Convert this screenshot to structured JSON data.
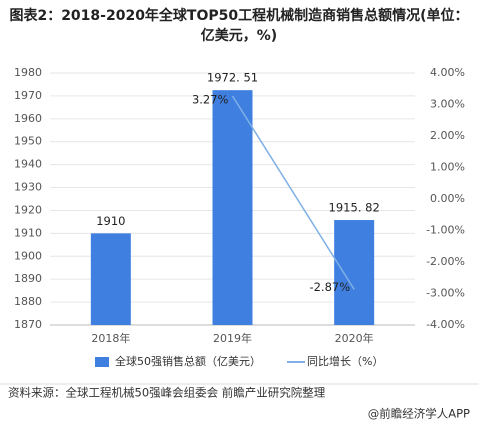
{
  "chart_data": {
    "type": "bar-line",
    "title": "图表2：2018-2020年全球TOP50工程机械制造商销售总额情况(单位：亿美元，%)",
    "categories": [
      "2018年",
      "2019年",
      "2020年"
    ],
    "series": [
      {
        "name": "全球50强销售总额（亿美元）",
        "type": "bar",
        "color": "#3f7fe0",
        "values": [
          1910,
          1972.51,
          1915.82
        ],
        "value_labels": [
          "1910",
          "1972. 51",
          "1915. 82"
        ]
      },
      {
        "name": "同比增长（%）",
        "type": "line",
        "axis": "y2",
        "color": "#7fb0e6",
        "values": [
          null,
          3.27,
          -2.87
        ],
        "value_labels": [
          null,
          "3.27%",
          "-2.87%"
        ]
      }
    ],
    "ylim": [
      1870,
      1980
    ],
    "yticks": [
      1870,
      1880,
      1890,
      1900,
      1910,
      1920,
      1930,
      1940,
      1950,
      1960,
      1970,
      1980
    ],
    "y2lim": [
      -4,
      4
    ],
    "y2ticks": [
      {
        "value": -4,
        "label": "-4.00%"
      },
      {
        "value": -3,
        "label": "-3.00%"
      },
      {
        "value": -2,
        "label": "-2.00%"
      },
      {
        "value": -1,
        "label": "-1.00%"
      },
      {
        "value": 0,
        "label": "0.00%"
      },
      {
        "value": 1,
        "label": "1.00%"
      },
      {
        "value": 2,
        "label": "2.00%"
      },
      {
        "value": 3,
        "label": "3.00%"
      },
      {
        "value": 4,
        "label": "4.00%"
      }
    ],
    "source": "资料来源：全球工程机械50强峰会组委会 前瞻产业研究院整理",
    "footer": "@前瞻经济学人APP"
  }
}
